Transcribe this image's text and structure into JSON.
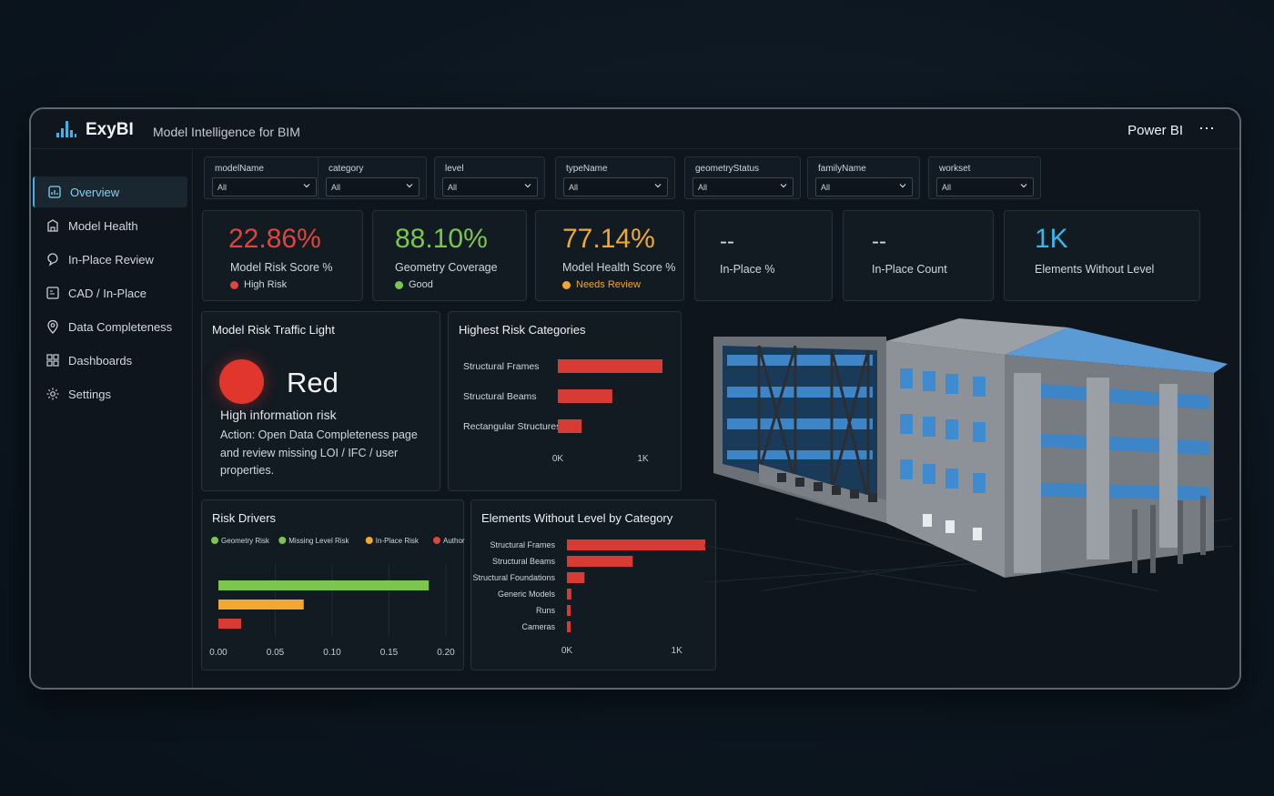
{
  "app": {
    "brand": "ExyBI",
    "subtitle": "Model Intelligence for BIM",
    "platform": "Power BI",
    "more_icon": "⋯",
    "accent": "#3fb4e8"
  },
  "sidebar": {
    "items": [
      {
        "label": "Overview",
        "icon": "overview-icon",
        "active": true
      },
      {
        "label": "Model Health",
        "icon": "model-health-icon"
      },
      {
        "label": "In-Place Review",
        "icon": "in-place-review-icon"
      },
      {
        "label": "CAD / In-Place",
        "icon": "cad-icon"
      },
      {
        "label": "Data Completeness",
        "icon": "location-pin-icon"
      },
      {
        "label": "Dashboards",
        "icon": "dashboards-grid-icon"
      },
      {
        "label": "Settings",
        "icon": "gear-icon"
      }
    ]
  },
  "filters": [
    {
      "label": "modelName",
      "value": "All"
    },
    {
      "label": "category",
      "value": "All"
    },
    {
      "label": "level",
      "value": "All"
    },
    {
      "label": "typeName",
      "value": "All"
    },
    {
      "label": "geometryStatus",
      "value": "All"
    },
    {
      "label": "familyName",
      "value": "All"
    },
    {
      "label": "workset",
      "value": "All"
    }
  ],
  "kpis": [
    {
      "value": "22.86%",
      "caption": "Model Risk Score %",
      "status": "High Risk",
      "color": "#e0443c"
    },
    {
      "value": "88.10%",
      "caption": "Geometry Coverage",
      "status": "Good",
      "color": "#7cc650"
    },
    {
      "value": "77.14%",
      "caption": "Model Health Score %",
      "status": "Needs Review",
      "color": "#f0a830"
    },
    {
      "value": "--",
      "caption": "In-Place %"
    },
    {
      "value": "--",
      "caption": "In-Place Count"
    },
    {
      "value": "1K",
      "caption": "Elements Without Level",
      "color": "#3fb4e8"
    }
  ],
  "traffic_light": {
    "title": "Model Risk Traffic Light",
    "status": "Red",
    "color": "#e0362c",
    "headline": "High information risk",
    "action": "Action: Open Data Completeness page and review missing LOI / IFC / user properties."
  },
  "chart_data": [
    {
      "id": "highest-risk",
      "title": "Highest Risk Categories",
      "type": "bar",
      "orientation": "horizontal",
      "categories": [
        "Structural Frames",
        "Structural Beams",
        "Rectangular Structures"
      ],
      "values": [
        1230,
        640,
        280
      ],
      "xticks": [
        "0K",
        "1K"
      ],
      "xlim": [
        0,
        1230
      ],
      "color": "#d83a34"
    },
    {
      "id": "risk-drivers",
      "title": "Risk Drivers",
      "type": "bar",
      "orientation": "horizontal",
      "legend": [
        "Geometry Risk",
        "Missing Level Risk",
        "In-Place Risk",
        "Authoring Risk"
      ],
      "legend_colors": [
        "#7cc650",
        "#7cc650",
        "#f0a830",
        "#e0443c"
      ],
      "values": [
        0.185,
        0.075,
        0.02
      ],
      "colors": [
        "#7cc650",
        "#f0a830",
        "#d83a34"
      ],
      "xticks": [
        "0.00",
        "0.05",
        "0.10",
        "0.15",
        "0.20"
      ],
      "xlim": [
        0,
        0.2
      ],
      "grid": true
    },
    {
      "id": "without-level",
      "title": "Elements Without Level by Category",
      "type": "bar",
      "orientation": "horizontal",
      "categories": [
        "Structural Frames",
        "Structural Beams",
        "Structural Foundations",
        "Generic Models",
        "Runs",
        "Cameras"
      ],
      "values": [
        1260,
        600,
        160,
        40,
        30,
        30
      ],
      "xticks": [
        "0K",
        "1K"
      ],
      "xlim": [
        0,
        1260
      ],
      "color": "#d83a34"
    }
  ]
}
